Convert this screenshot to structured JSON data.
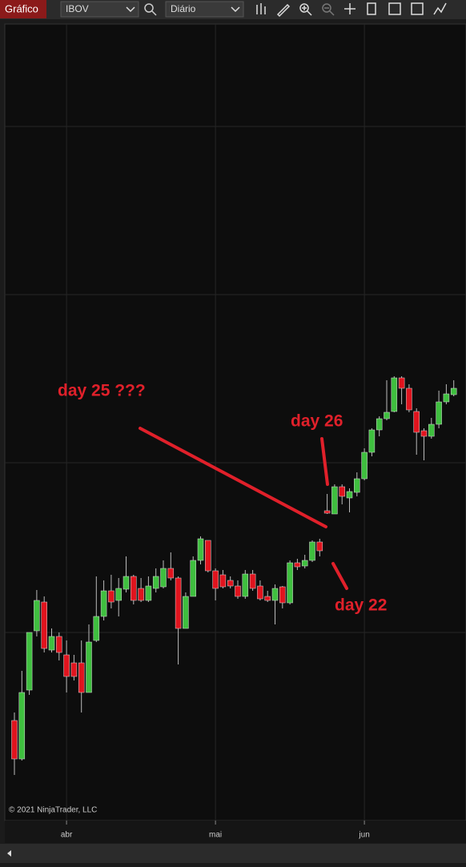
{
  "toolbar": {
    "title": "Gráfico",
    "instrument": "IBOV",
    "period": "Diário"
  },
  "chart_data": {
    "type": "candlestick",
    "categories": [
      null,
      null,
      null,
      null,
      null,
      null,
      null,
      "abr",
      null,
      null,
      null,
      null,
      null,
      null,
      null,
      null,
      null,
      null,
      null,
      null,
      null,
      null,
      null,
      null,
      null,
      null,
      null,
      "mai",
      null,
      null,
      null,
      null,
      null,
      null,
      null,
      null,
      null,
      null,
      null,
      null,
      null,
      null,
      null,
      null,
      null,
      null,
      null,
      "jun",
      null,
      null,
      null,
      null,
      null,
      null,
      null,
      null,
      null,
      null,
      null,
      null
    ],
    "open": [
      125,
      77,
      163,
      237,
      273,
      213,
      230,
      207,
      197,
      197,
      160,
      225,
      255,
      287,
      275,
      289,
      305,
      290,
      275,
      290,
      292,
      315,
      303,
      240,
      280,
      325,
      350,
      312,
      307,
      300,
      293,
      280,
      308,
      293,
      280,
      275,
      292,
      272,
      322,
      318,
      325,
      348,
      387,
      383,
      417,
      403,
      410,
      427,
      460,
      488,
      502,
      511,
      553,
      540,
      511,
      487,
      480,
      495,
      523,
      532
    ],
    "high": [
      135,
      187,
      235,
      288,
      280,
      240,
      235,
      225,
      207,
      225,
      245,
      305,
      300,
      307,
      303,
      330,
      307,
      303,
      305,
      315,
      325,
      335,
      305,
      285,
      330,
      355,
      350,
      315,
      313,
      305,
      300,
      313,
      313,
      300,
      287,
      295,
      293,
      325,
      327,
      332,
      350,
      352,
      408,
      420,
      420,
      415,
      435,
      465,
      490,
      505,
      550,
      555,
      555,
      545,
      515,
      490,
      503,
      537,
      545,
      550
    ],
    "low": [
      57,
      75,
      157,
      230,
      210,
      210,
      200,
      160,
      175,
      135,
      160,
      223,
      250,
      265,
      255,
      285,
      270,
      273,
      273,
      285,
      290,
      300,
      195,
      240,
      280,
      320,
      310,
      275,
      290,
      290,
      277,
      277,
      287,
      275,
      273,
      245,
      265,
      270,
      313,
      315,
      323,
      330,
      383,
      383,
      395,
      385,
      405,
      425,
      455,
      480,
      500,
      510,
      520,
      510,
      457,
      450,
      477,
      490,
      520,
      530
    ],
    "close": [
      77,
      160,
      235,
      275,
      215,
      230,
      210,
      180,
      180,
      160,
      223,
      255,
      287,
      273,
      290,
      305,
      275,
      275,
      293,
      305,
      315,
      303,
      240,
      280,
      325,
      352,
      312,
      290,
      292,
      293,
      280,
      308,
      290,
      277,
      275,
      290,
      272,
      322,
      317,
      325,
      348,
      337,
      384,
      417,
      405,
      411,
      427,
      460,
      488,
      502,
      510,
      553,
      540,
      513,
      485,
      480,
      495,
      523,
      533,
      540
    ],
    "up_color": "#3fbf3f",
    "down_color": "#e0141e",
    "ylim": [
      0,
      995
    ],
    "grid": true,
    "annotations": [
      "day 25 ???",
      "day 26",
      "day 22"
    ],
    "copyright": "© 2021 NinjaTrader, LLC"
  }
}
